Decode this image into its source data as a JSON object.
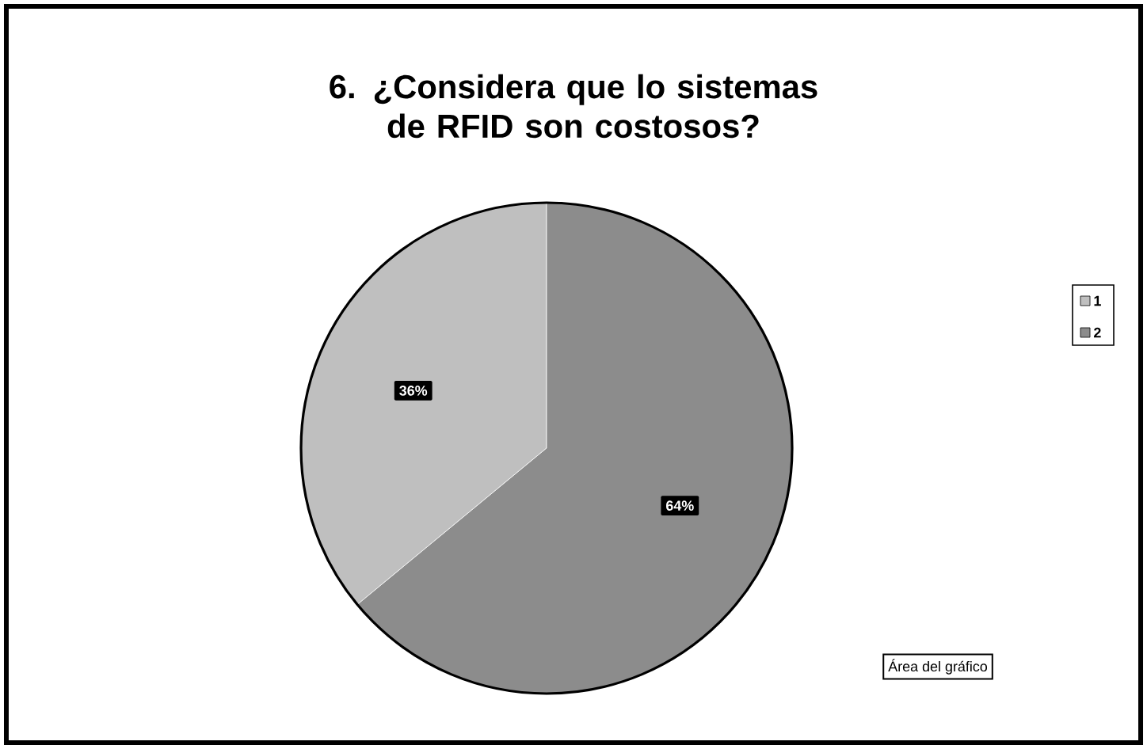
{
  "chart_data": {
    "type": "pie",
    "title": "6. ¿Considera que lo sistemas de RFID  son costosos?",
    "categories": [
      "1",
      "2"
    ],
    "values": [
      36,
      64
    ],
    "value_labels": [
      "36%",
      "64%"
    ],
    "colors": [
      "#bfbfbf",
      "#8c8c8c"
    ],
    "legend": "right",
    "annotations": [
      "Área del gráfico"
    ]
  }
}
